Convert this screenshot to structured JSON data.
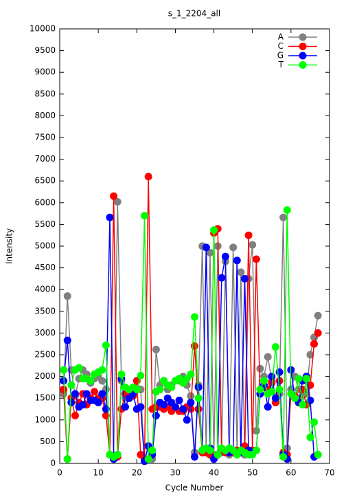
{
  "chart_data": {
    "type": "line",
    "title": "s_1_2204_all",
    "x_label": "Cycle Number",
    "y_label": "Intensity",
    "x": [
      1,
      2,
      3,
      4,
      5,
      6,
      7,
      8,
      9,
      10,
      11,
      12,
      13,
      14,
      15,
      16,
      17,
      18,
      19,
      20,
      21,
      22,
      23,
      24,
      25,
      26,
      27,
      28,
      29,
      30,
      31,
      32,
      33,
      34,
      35,
      36,
      37,
      38,
      39,
      40,
      41,
      42,
      43,
      44,
      45,
      46,
      47,
      48,
      49,
      50,
      51,
      52,
      53,
      54,
      55,
      56,
      57,
      58,
      59,
      60,
      61,
      62,
      63,
      64,
      65,
      66,
      67
    ],
    "xlim": [
      0,
      70
    ],
    "xticks": [
      0,
      10,
      20,
      30,
      40,
      50,
      60,
      70
    ],
    "ylim": [
      0,
      10000
    ],
    "yticks": [
      0,
      500,
      1000,
      1500,
      2000,
      2500,
      3000,
      3500,
      4000,
      4500,
      5000,
      5500,
      6000,
      6500,
      7000,
      7500,
      8000,
      8500,
      9000,
      9500,
      10000
    ],
    "legend": "upper right",
    "series": [
      {
        "name": "A",
        "color": "#808080",
        "values": [
          1600,
          3850,
          2150,
          1550,
          1950,
          2150,
          2050,
          1850,
          1950,
          2000,
          1900,
          1700,
          200,
          100,
          6020,
          1900,
          1500,
          1600,
          1700,
          1900,
          1700,
          100,
          400,
          100,
          2620,
          1800,
          1900,
          1700,
          1800,
          1900,
          1900,
          2000,
          1800,
          1550,
          250,
          1800,
          5000,
          250,
          4850,
          200,
          5000,
          250,
          4650,
          200,
          4970,
          250,
          4400,
          200,
          4250,
          5030,
          750,
          2180,
          2000,
          2450,
          1900,
          1500,
          1600,
          5660,
          350,
          1700,
          2000,
          1700,
          1550,
          1600,
          2500,
          2900,
          3400
        ]
      },
      {
        "name": "C",
        "color": "#ff0000",
        "values": [
          1700,
          100,
          1500,
          1100,
          1400,
          1600,
          1350,
          1500,
          1650,
          1500,
          1500,
          1100,
          200,
          6150,
          150,
          1250,
          1600,
          1500,
          1550,
          1900,
          200,
          100,
          6600,
          1250,
          1300,
          1300,
          1250,
          1300,
          1200,
          1300,
          1200,
          1200,
          1300,
          1250,
          2700,
          1250,
          250,
          250,
          200,
          5300,
          5400,
          300,
          250,
          300,
          250,
          300,
          300,
          400,
          5250,
          300,
          4700,
          1600,
          1750,
          1700,
          1850,
          1400,
          1900,
          250,
          200,
          1600,
          1550,
          1400,
          1700,
          1350,
          1800,
          2750,
          3000
        ]
      },
      {
        "name": "G",
        "color": "#0000ff",
        "values": [
          1900,
          2830,
          1400,
          1600,
          1300,
          1350,
          1600,
          1450,
          1450,
          1400,
          1600,
          1250,
          5660,
          100,
          200,
          1950,
          1300,
          1500,
          1600,
          1250,
          1300,
          50,
          400,
          200,
          1100,
          1400,
          1350,
          1500,
          1400,
          1300,
          1450,
          1250,
          1000,
          1400,
          150,
          1750,
          300,
          4970,
          350,
          100,
          200,
          4270,
          4760,
          250,
          300,
          4670,
          250,
          4250,
          300,
          250,
          300,
          1600,
          1800,
          1300,
          2000,
          1500,
          2100,
          200,
          100,
          2150,
          1500,
          1400,
          1900,
          2000,
          1450,
          150,
          200
        ]
      },
      {
        "name": "T",
        "color": "#00ff00",
        "values": [
          2150,
          100,
          1800,
          2150,
          2200,
          1950,
          1950,
          1900,
          2050,
          2100,
          2150,
          2720,
          200,
          150,
          200,
          2050,
          1750,
          1700,
          1750,
          1700,
          2020,
          5700,
          100,
          300,
          1650,
          1700,
          1900,
          1800,
          1750,
          1900,
          1950,
          1850,
          1950,
          2050,
          3370,
          1500,
          300,
          350,
          300,
          5370,
          200,
          350,
          300,
          350,
          300,
          200,
          300,
          250,
          200,
          200,
          300,
          1700,
          1900,
          1600,
          1650,
          2680,
          1700,
          150,
          5830,
          1600,
          1500,
          1950,
          1350,
          1950,
          600,
          950,
          200
        ]
      }
    ]
  }
}
